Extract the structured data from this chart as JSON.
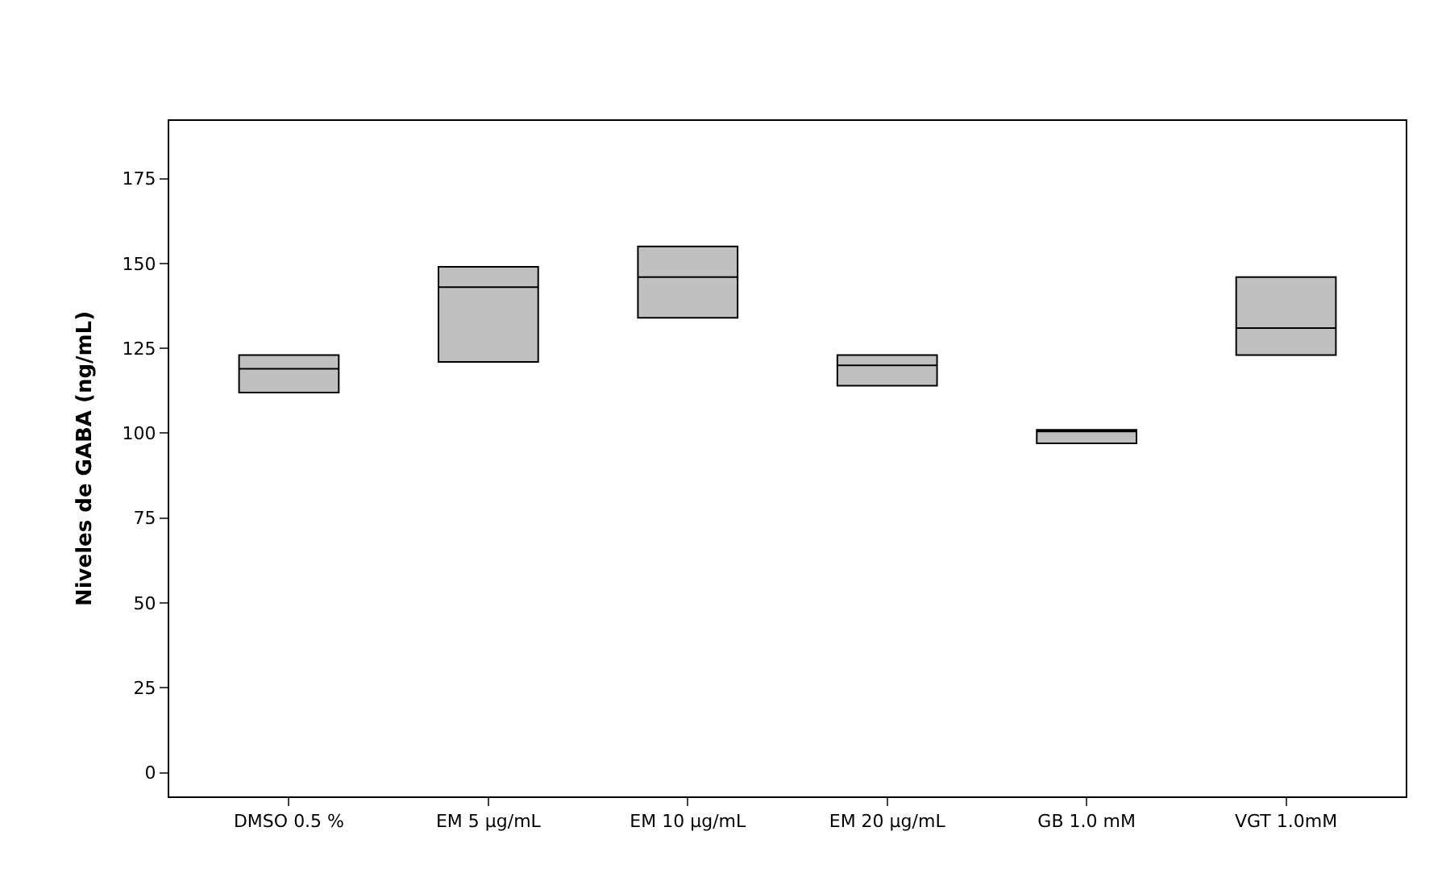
{
  "chart_data": {
    "type": "box",
    "ylabel": "Niveles de GABA (ng/mL)",
    "categories": [
      "DMSO 0.5 %",
      "EM 5 μg/mL",
      "EM 10 μg/mL",
      "EM 20 μg/mL",
      "GB 1.0 mM",
      "VGT 1.0mM"
    ],
    "boxes": [
      {
        "low": 112,
        "q1": 112,
        "median": 119,
        "q3": 123,
        "high": 123
      },
      {
        "low": 121,
        "q1": 121,
        "median": 143,
        "q3": 149,
        "high": 149
      },
      {
        "low": 134,
        "q1": 134,
        "median": 146,
        "q3": 155,
        "high": 155
      },
      {
        "low": 114,
        "q1": 114,
        "median": 120,
        "q3": 123,
        "high": 123
      },
      {
        "low": 97,
        "q1": 97,
        "median": 101,
        "q3": 101,
        "high": 101
      },
      {
        "low": 123,
        "q1": 123,
        "median": 131,
        "q3": 146,
        "high": 146
      }
    ],
    "color": "#c0c0c0",
    "ylim": [
      -7,
      192
    ],
    "yticks": [
      0,
      25,
      50,
      75,
      100,
      125,
      150,
      175
    ],
    "legend": false
  }
}
